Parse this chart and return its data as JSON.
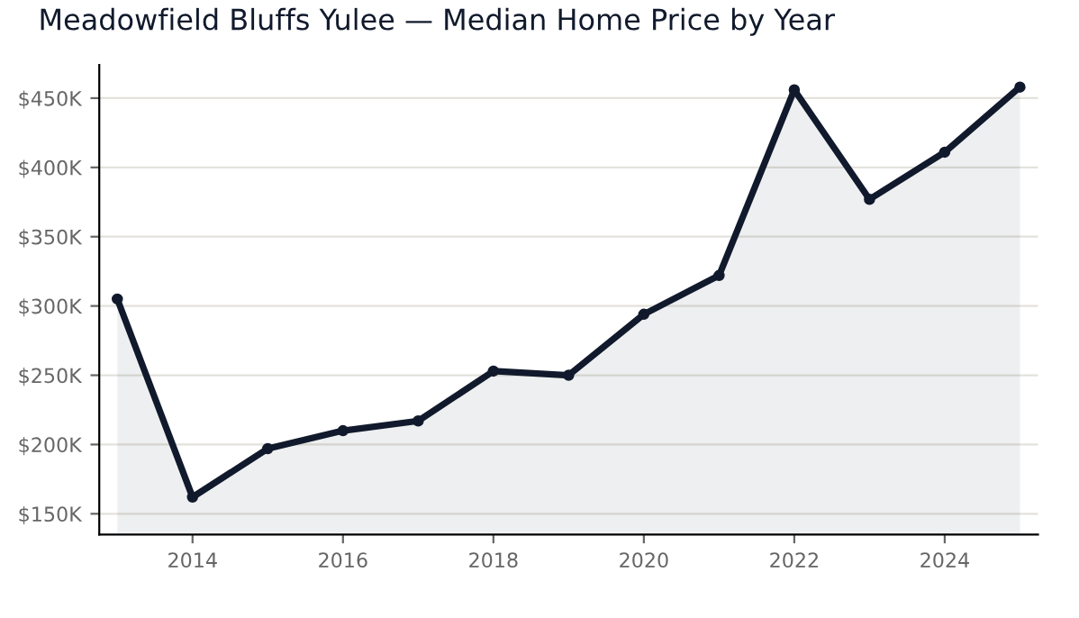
{
  "chart_data": {
    "type": "area",
    "title": "Meadowfield Bluffs Yulee — Median Home Price by Year",
    "x": [
      2013,
      2014,
      2015,
      2016,
      2017,
      2018,
      2019,
      2020,
      2021,
      2022,
      2023,
      2024,
      2025
    ],
    "series": [
      {
        "color": "#111a2c",
        "values": [
          305,
          162,
          197,
          210,
          217,
          253,
          250,
          294,
          322,
          456,
          377,
          411,
          458
        ]
      }
    ],
    "xlim": [
      2012.76,
      2025.24
    ],
    "xticks": [
      2014,
      2016,
      2018,
      2020,
      2022,
      2024
    ],
    "ylim": [
      135,
      474
    ],
    "yticks": [
      {
        "value": 150,
        "label": "$150K"
      },
      {
        "value": 200,
        "label": "$200K"
      },
      {
        "value": 250,
        "label": "$250K"
      },
      {
        "value": 300,
        "label": "$300K"
      },
      {
        "value": 350,
        "label": "$350K"
      },
      {
        "value": 400,
        "label": "$400K"
      },
      {
        "value": 450,
        "label": "$450K"
      }
    ],
    "grid": "y",
    "marker": "circle",
    "line_style": "solid"
  }
}
